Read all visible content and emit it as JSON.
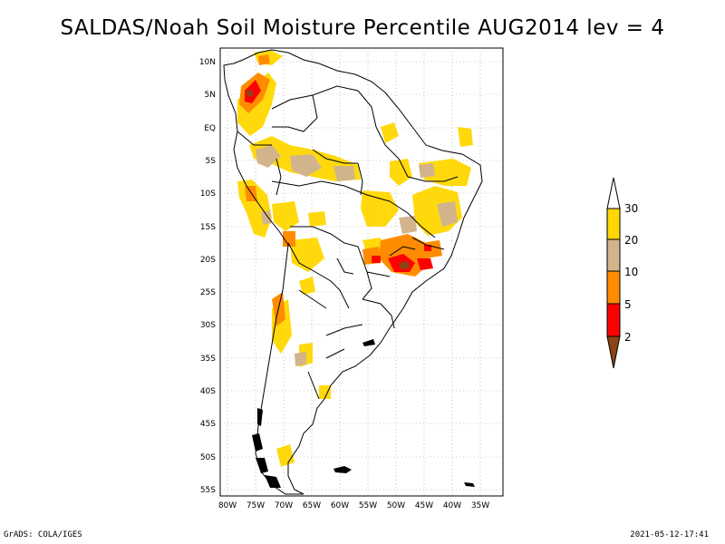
{
  "title": "SALDAS/Noah Soil Moisture Percentile AUG2014 lev = 4",
  "map": {
    "lon_range": [
      -81,
      -33
    ],
    "lat_range": [
      -56,
      12
    ],
    "grid": true,
    "lat_ticks": [
      "10N",
      "5N",
      "EQ",
      "5S",
      "10S",
      "15S",
      "20S",
      "25S",
      "30S",
      "35S",
      "40S",
      "45S",
      "50S",
      "55S"
    ],
    "lon_ticks": [
      "80W",
      "75W",
      "70W",
      "65W",
      "60W",
      "55W",
      "50W",
      "45W",
      "40W",
      "35W"
    ]
  },
  "colorbar": {
    "labels": [
      "30",
      "20",
      "10",
      "5",
      "2"
    ],
    "colors": [
      "#ffffff",
      "#ffd700",
      "#d2b48c",
      "#ff8c00",
      "#ff0000",
      "#8b4513"
    ]
  },
  "footer": {
    "left": "GrADS: COLA/IGES",
    "right": "2021-05-12-17:41"
  }
}
